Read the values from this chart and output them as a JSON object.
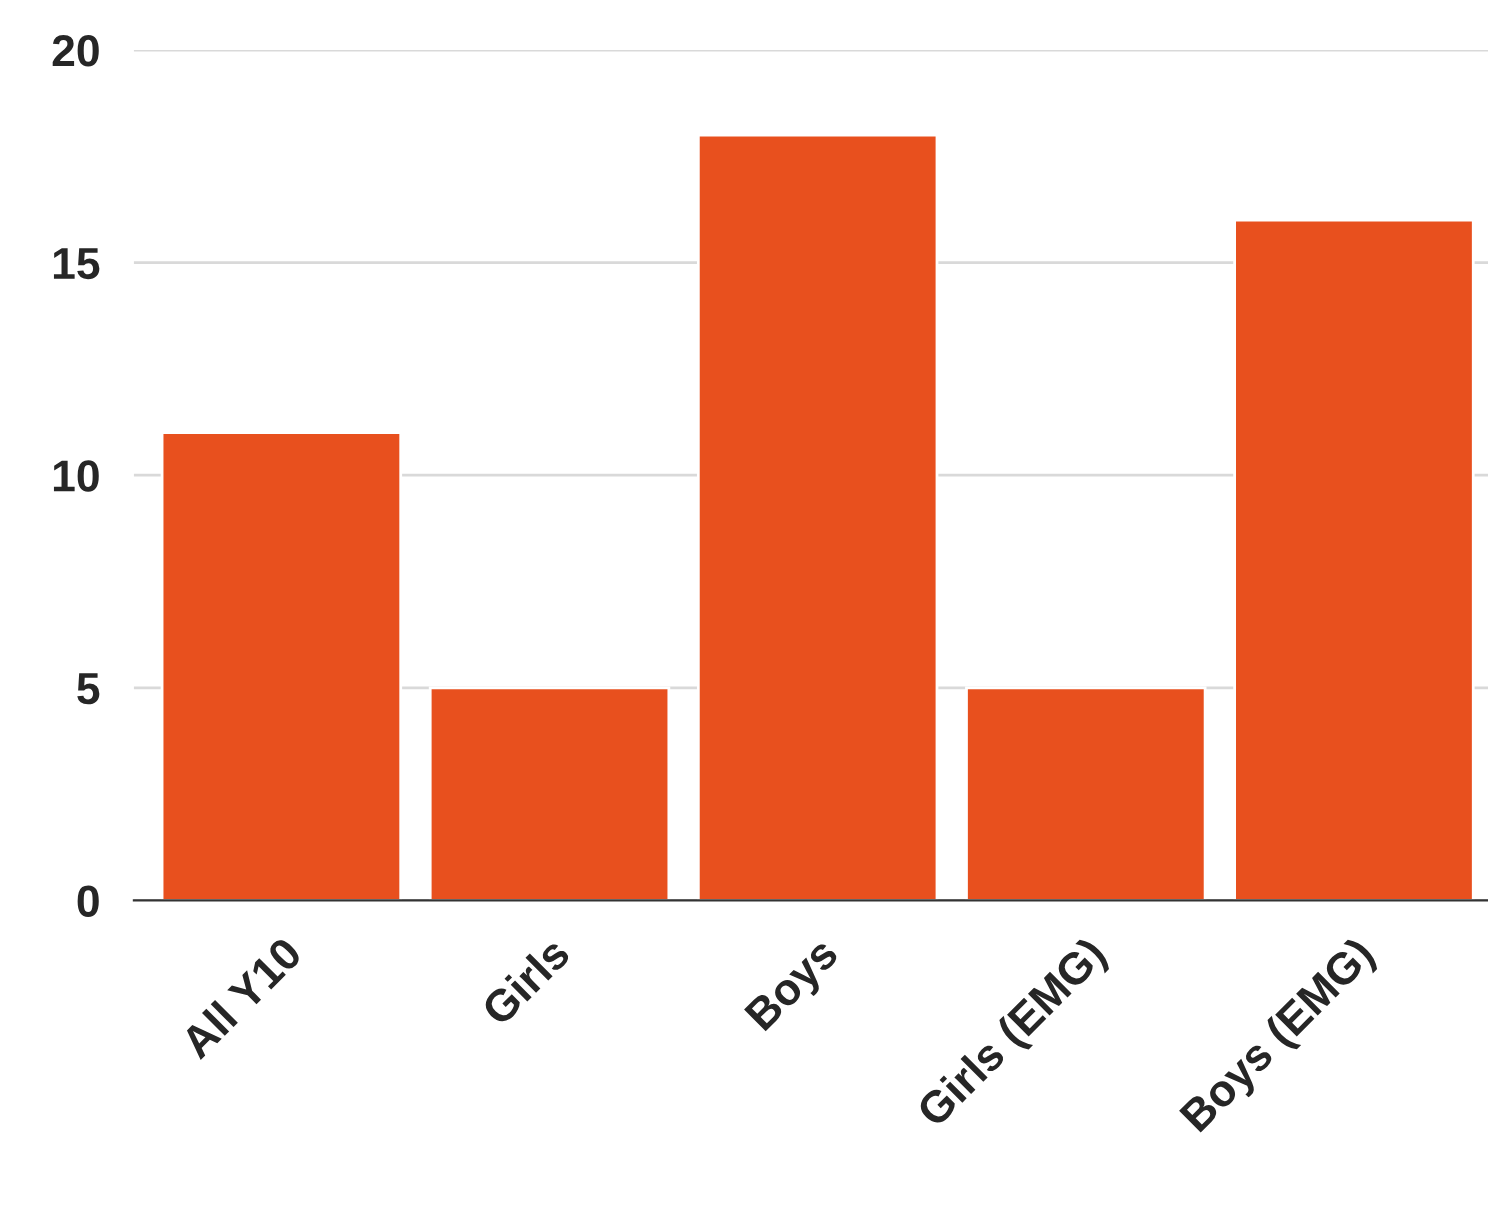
{
  "chart_data": {
    "type": "bar",
    "categories": [
      "All Y10",
      "Girls",
      "Boys",
      "Girls (EMG)",
      "Boys (EMG)"
    ],
    "values": [
      11,
      5,
      18,
      5,
      16
    ],
    "color": "#e8501e",
    "ylim": [
      0,
      20
    ],
    "yticks": [
      0,
      5,
      10,
      15,
      20
    ],
    "grid": "y",
    "legend": false
  }
}
